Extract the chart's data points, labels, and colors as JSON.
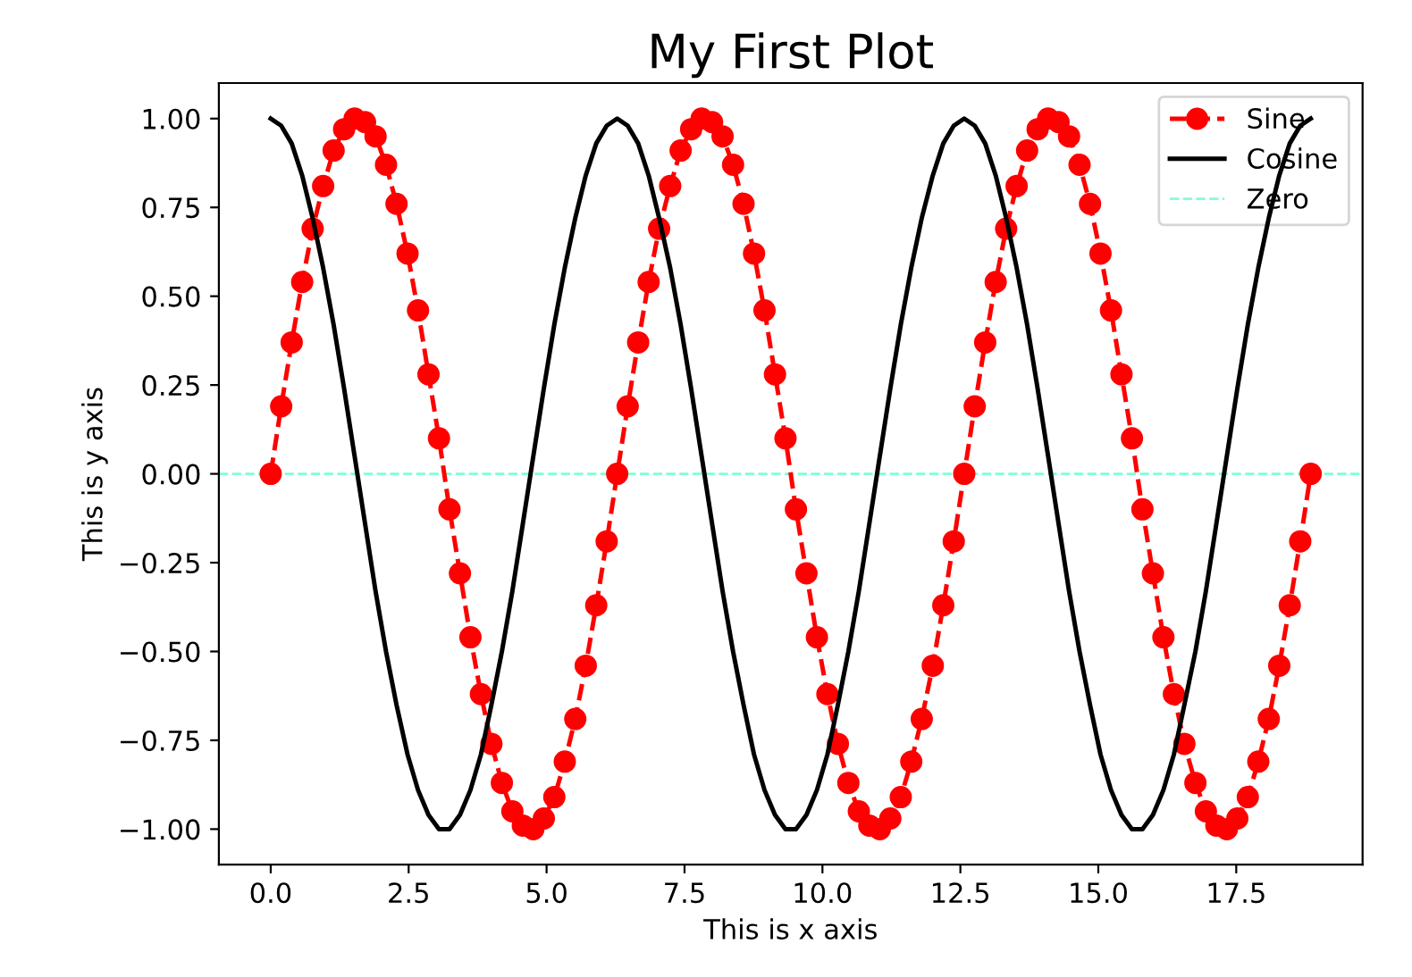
{
  "chart_data": {
    "type": "line",
    "title": "My First Plot",
    "xlabel": "This is x axis",
    "ylabel": "This is y axis",
    "x": [
      0,
      0.19,
      0.38,
      0.57,
      0.76,
      0.95,
      1.14,
      1.33,
      1.52,
      1.71,
      1.9,
      2.09,
      2.28,
      2.48,
      2.67,
      2.86,
      3.05,
      3.24,
      3.43,
      3.62,
      3.81,
      4.0,
      4.19,
      4.38,
      4.57,
      4.76,
      4.95,
      5.14,
      5.33,
      5.52,
      5.71,
      5.9,
      6.09,
      6.28,
      6.47,
      6.66,
      6.85,
      7.04,
      7.24,
      7.43,
      7.62,
      7.81,
      8.0,
      8.19,
      8.38,
      8.57,
      8.76,
      8.95,
      9.14,
      9.33,
      9.52,
      9.71,
      9.9,
      10.09,
      10.28,
      10.47,
      10.66,
      10.85,
      11.04,
      11.23,
      11.42,
      11.61,
      11.8,
      12.0,
      12.19,
      12.38,
      12.57,
      12.76,
      12.95,
      13.14,
      13.33,
      13.52,
      13.71,
      13.9,
      14.09,
      14.28,
      14.47,
      14.66,
      14.85,
      15.04,
      15.23,
      15.42,
      15.61,
      15.8,
      15.99,
      16.18,
      16.37,
      16.56,
      16.76,
      16.95,
      17.14,
      17.33,
      17.52,
      17.71,
      17.9,
      18.09,
      18.28,
      18.47,
      18.66,
      18.85
    ],
    "series": [
      {
        "name": "Sine",
        "color": "#ff0000",
        "marker": "circle",
        "line_style": "dashed",
        "values": [
          0,
          0.19,
          0.37,
          0.54,
          0.69,
          0.81,
          0.91,
          0.97,
          1.0,
          0.99,
          0.95,
          0.87,
          0.76,
          0.62,
          0.46,
          0.28,
          0.1,
          -0.1,
          -0.28,
          -0.46,
          -0.62,
          -0.76,
          -0.87,
          -0.95,
          -0.99,
          -1.0,
          -0.97,
          -0.91,
          -0.81,
          -0.69,
          -0.54,
          -0.37,
          -0.19,
          0,
          0.19,
          0.37,
          0.54,
          0.69,
          0.81,
          0.91,
          0.97,
          1.0,
          0.99,
          0.95,
          0.87,
          0.76,
          0.62,
          0.46,
          0.28,
          0.1,
          -0.1,
          -0.28,
          -0.46,
          -0.62,
          -0.76,
          -0.87,
          -0.95,
          -0.99,
          -1.0,
          -0.97,
          -0.91,
          -0.81,
          -0.69,
          -0.54,
          -0.37,
          -0.19,
          0,
          0.19,
          0.37,
          0.54,
          0.69,
          0.81,
          0.91,
          0.97,
          1.0,
          0.99,
          0.95,
          0.87,
          0.76,
          0.62,
          0.46,
          0.28,
          0.1,
          -0.1,
          -0.28,
          -0.46,
          -0.62,
          -0.76,
          -0.87,
          -0.95,
          -0.99,
          -1.0,
          -0.97,
          -0.91,
          -0.81,
          -0.69,
          -0.54,
          -0.37,
          -0.19,
          0
        ]
      },
      {
        "name": "Cosine",
        "color": "#000000",
        "marker": "none",
        "line_style": "solid",
        "values": [
          1,
          0.98,
          0.93,
          0.84,
          0.72,
          0.58,
          0.42,
          0.24,
          0.05,
          -0.14,
          -0.33,
          -0.5,
          -0.65,
          -0.79,
          -0.89,
          -0.96,
          -1.0,
          -1.0,
          -0.96,
          -0.89,
          -0.79,
          -0.65,
          -0.5,
          -0.33,
          -0.14,
          0.05,
          0.24,
          0.42,
          0.58,
          0.72,
          0.84,
          0.93,
          0.98,
          1,
          0.98,
          0.93,
          0.84,
          0.72,
          0.58,
          0.42,
          0.24,
          0.05,
          -0.14,
          -0.33,
          -0.5,
          -0.65,
          -0.79,
          -0.89,
          -0.96,
          -1.0,
          -1.0,
          -0.96,
          -0.89,
          -0.79,
          -0.65,
          -0.5,
          -0.33,
          -0.14,
          0.05,
          0.24,
          0.42,
          0.58,
          0.72,
          0.84,
          0.93,
          0.98,
          1,
          0.98,
          0.93,
          0.84,
          0.72,
          0.58,
          0.42,
          0.24,
          0.05,
          -0.14,
          -0.33,
          -0.5,
          -0.65,
          -0.79,
          -0.89,
          -0.96,
          -1.0,
          -1.0,
          -0.96,
          -0.89,
          -0.79,
          -0.65,
          -0.5,
          -0.33,
          -0.14,
          0.05,
          0.24,
          0.42,
          0.58,
          0.72,
          0.84,
          0.93,
          0.98,
          1
        ]
      }
    ],
    "ref_lines": [
      {
        "axis": "y",
        "value": 0,
        "label": "Zero",
        "color": "#7fffd4",
        "line_style": "dashed"
      }
    ],
    "xlim": [
      -0.94,
      19.79
    ],
    "ylim": [
      -1.1,
      1.1
    ],
    "xticks": [
      {
        "value": 0,
        "label": "0.0"
      },
      2.5,
      {
        "value": 5,
        "label": "5.0"
      },
      7.5,
      {
        "value": 10,
        "label": "10.0"
      },
      12.5,
      {
        "value": 15,
        "label": "15.0"
      },
      17.5
    ],
    "yticks": [
      {
        "value": -1,
        "label": "−1.00"
      },
      {
        "value": -0.75,
        "label": "−0.75"
      },
      {
        "value": -0.5,
        "label": "−0.50"
      },
      {
        "value": -0.25,
        "label": "−0.25"
      },
      {
        "value": 0,
        "label": "0.00"
      },
      0.25,
      {
        "value": 0.5,
        "label": "0.50"
      },
      0.75,
      {
        "value": 1,
        "label": "1.00"
      }
    ],
    "grid": false,
    "legend": "top right"
  }
}
